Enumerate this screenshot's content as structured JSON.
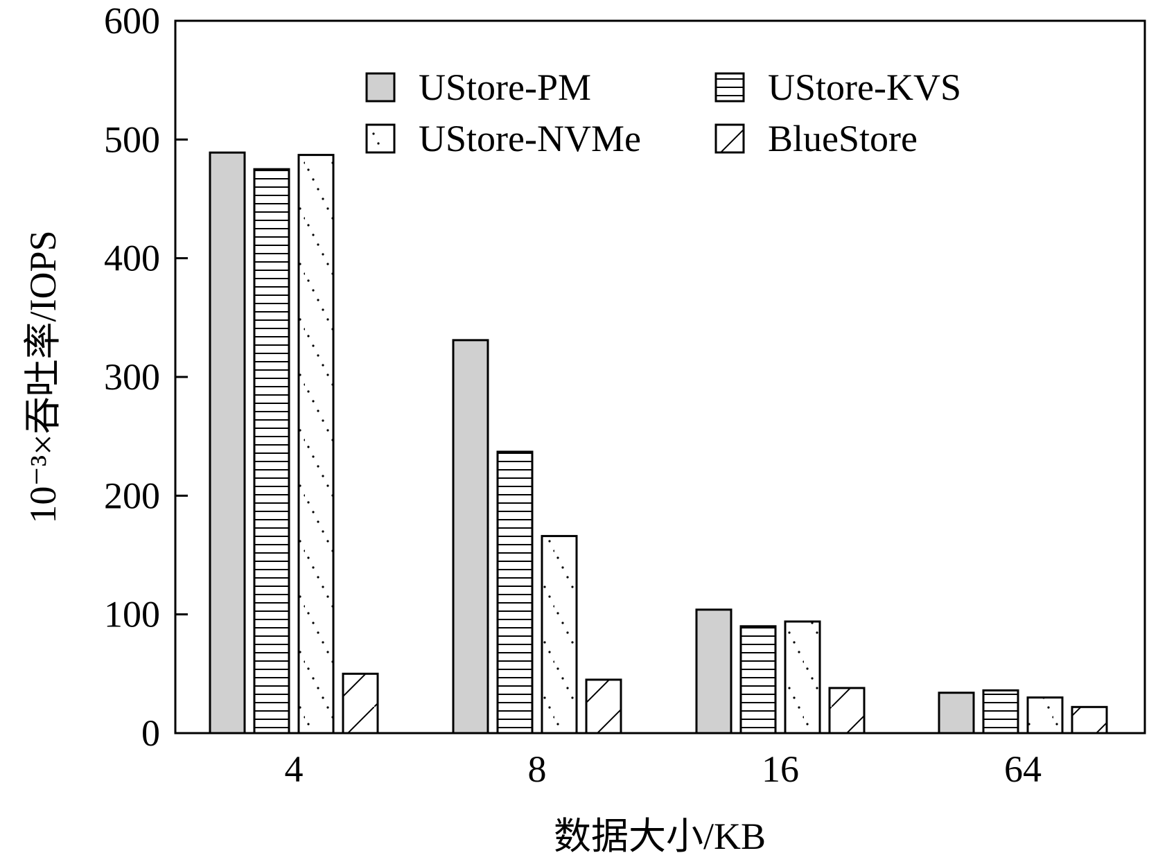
{
  "chart_data": {
    "type": "bar",
    "xlabel": "数据大小/KB",
    "ylabel": "10⁻³×吞吐率/IOPS",
    "ylim": [
      0,
      600
    ],
    "yticks": [
      0,
      100,
      200,
      300,
      400,
      500,
      600
    ],
    "categories": [
      "4",
      "8",
      "16",
      "64"
    ],
    "legend_position": "top-center-inside",
    "grid": false,
    "series": [
      {
        "name": "UStore-PM",
        "pattern": "solid-gray",
        "values": [
          489,
          331,
          104,
          34
        ]
      },
      {
        "name": "UStore-KVS",
        "pattern": "horizontal",
        "values": [
          475,
          237,
          90,
          36
        ]
      },
      {
        "name": "UStore-NVMe",
        "pattern": "dotted",
        "values": [
          487,
          166,
          94,
          30
        ]
      },
      {
        "name": "BlueStore",
        "pattern": "diagonal",
        "values": [
          50,
          45,
          38,
          22
        ]
      }
    ]
  },
  "colors": {
    "gray_fill": "#d0d0d0",
    "stroke": "#000000",
    "background": "#ffffff"
  }
}
